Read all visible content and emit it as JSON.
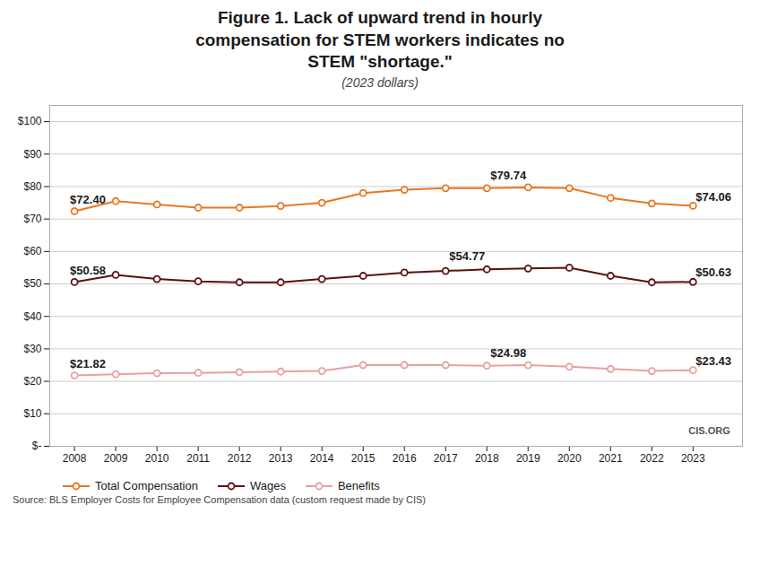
{
  "chart_data": {
    "type": "line",
    "title": "Figure 1. Lack of upward trend in hourly\ncompensation for STEM workers indicates no\nSTEM \"shortage.\"",
    "subtitle": "(2023 dollars)",
    "source": "Source: BLS Employer Costs for Employee Compensation data (custom request made by CIS)",
    "x": [
      2008,
      2009,
      2010,
      2011,
      2012,
      2013,
      2014,
      2015,
      2016,
      2017,
      2018,
      2019,
      2020,
      2021,
      2022,
      2023
    ],
    "xlim": [
      2007.4,
      2024.2
    ],
    "xticks": [
      2008,
      2009,
      2010,
      2011,
      2012,
      2013,
      2014,
      2015,
      2016,
      2017,
      2018,
      2019,
      2020,
      2021,
      2022,
      2023
    ],
    "ylim": [
      0,
      105
    ],
    "yticks": [
      {
        "value": 0,
        "label": "$-"
      },
      {
        "value": 10,
        "label": "$10"
      },
      {
        "value": 20,
        "label": "$20"
      },
      {
        "value": 30,
        "label": "$30"
      },
      {
        "value": 40,
        "label": "$40"
      },
      {
        "value": 50,
        "label": "$50"
      },
      {
        "value": 60,
        "label": "$60"
      },
      {
        "value": 70,
        "label": "$70"
      },
      {
        "value": 80,
        "label": "$80"
      },
      {
        "value": 90,
        "label": "$90"
      },
      {
        "value": 100,
        "label": "$100"
      }
    ],
    "grid": true,
    "legend": "lower left",
    "marker": "circle",
    "series": [
      {
        "name": "Total Compensation",
        "color": "#E87722",
        "values": [
          72.4,
          75.5,
          74.5,
          73.5,
          73.5,
          74.0,
          75.0,
          78.0,
          79.0,
          79.5,
          79.5,
          79.74,
          79.5,
          76.5,
          74.8,
          74.06
        ]
      },
      {
        "name": "Wages",
        "color": "#5C1010",
        "values": [
          50.58,
          52.8,
          51.5,
          50.8,
          50.5,
          50.5,
          51.5,
          52.5,
          53.5,
          54.0,
          54.5,
          54.77,
          55.0,
          52.5,
          50.5,
          50.63
        ]
      },
      {
        "name": "Benefits",
        "color": "#E8A0A0",
        "values": [
          21.82,
          22.2,
          22.5,
          22.6,
          22.8,
          23.0,
          23.2,
          25.0,
          25.0,
          25.0,
          24.8,
          24.98,
          24.5,
          23.8,
          23.2,
          23.43
        ]
      }
    ],
    "annotations": [
      {
        "x": 2008,
        "y": 72.4,
        "text": "$72.40"
      },
      {
        "x": 2019,
        "y": 79.74,
        "text": "$79.74"
      },
      {
        "x": 2023,
        "y": 74.06,
        "text": "$74.06"
      },
      {
        "x": 2008,
        "y": 50.58,
        "text": "$50.58"
      },
      {
        "x": 2018,
        "y": 54.77,
        "text": "$54.77"
      },
      {
        "x": 2023,
        "y": 50.63,
        "text": "$50.63"
      },
      {
        "x": 2008,
        "y": 21.82,
        "text": "$21.82"
      },
      {
        "x": 2019,
        "y": 24.98,
        "text": "$24.98"
      },
      {
        "x": 2023,
        "y": 23.43,
        "text": "$23.43"
      },
      {
        "x": 2023.9,
        "y": 2.5,
        "text": "CIS.ORG"
      }
    ]
  }
}
